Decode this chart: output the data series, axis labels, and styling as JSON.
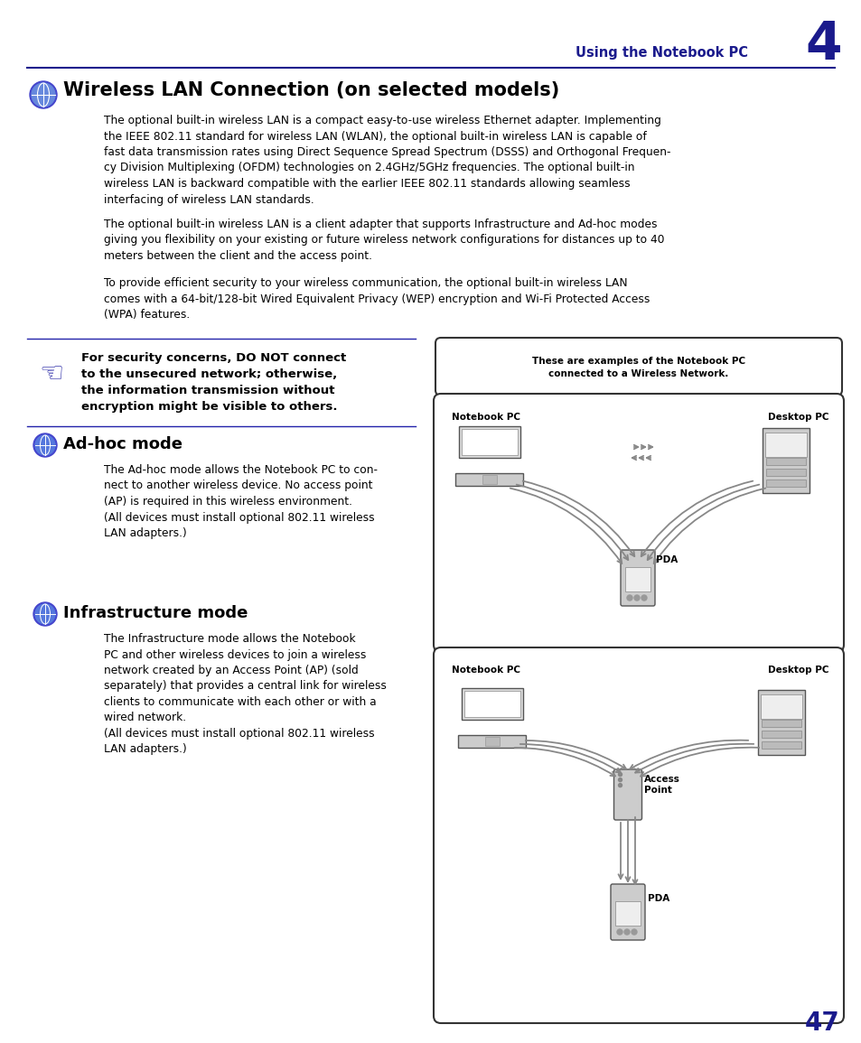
{
  "page_bg": "#ffffff",
  "header_color": "#1a1a8c",
  "header_text": "Using the Notebook PC",
  "header_number": "4",
  "title_text": "Wireless LAN Connection (on selected models)",
  "body_color": "#000000",
  "blue_line_color": "#1a1a8c",
  "page_number": "47",
  "para1": "The optional built-in wireless LAN is a compact easy-to-use wireless Ethernet adapter. Implementing\nthe IEEE 802.11 standard for wireless LAN (WLAN), the optional built-in wireless LAN is capable of\nfast data transmission rates using Direct Sequence Spread Spectrum (DSSS) and Orthogonal Frequen-\ncy Division Multiplexing (OFDM) technologies on 2.4GHz/5GHz frequencies. The optional built-in\nwireless LAN is backward compatible with the earlier IEEE 802.11 standards allowing seamless\ninterfacing of wireless LAN standards.",
  "para2": "The optional built-in wireless LAN is a client adapter that supports Infrastructure and Ad-hoc modes\ngiving you flexibility on your existing or future wireless network configurations for distances up to 40\nmeters between the client and the access point.",
  "para3": "To provide efficient security to your wireless communication, the optional built-in wireless LAN\ncomes with a 64-bit/128-bit Wired Equivalent Privacy (WEP) encryption and Wi-Fi Protected Access\n(WPA) features.",
  "warning_text": "For security concerns, DO NOT connect\nto the unsecured network; otherwise,\nthe information transmission without\nencryption might be visible to others.",
  "adhoc_title": "Ad-hoc mode",
  "adhoc_text": "The Ad-hoc mode allows the Notebook PC to con-\nnect to another wireless device. No access point\n(AP) is required in this wireless environment.\n(All devices must install optional 802.11 wireless\nLAN adapters.)",
  "infra_title": "Infrastructure mode",
  "infra_text": "The Infrastructure mode allows the Notebook\nPC and other wireless devices to join a wireless\nnetwork created by an Access Point (AP) (sold\nseparately) that provides a central link for wireless\nclients to communicate with each other or with a\nwired network.\n(All devices must install optional 802.11 wireless\nLAN adapters.)",
  "box1_text": "These are examples of the Notebook PC\nconnected to a Wireless Network.",
  "diagram1_notebook_label": "Notebook PC",
  "diagram1_desktop_label": "Desktop PC",
  "diagram1_pda_label": "PDA",
  "diagram2_notebook_label": "Notebook PC",
  "diagram2_desktop_label": "Desktop PC",
  "diagram2_ap_label": "Access\nPoint",
  "diagram2_pda_label": "PDA"
}
